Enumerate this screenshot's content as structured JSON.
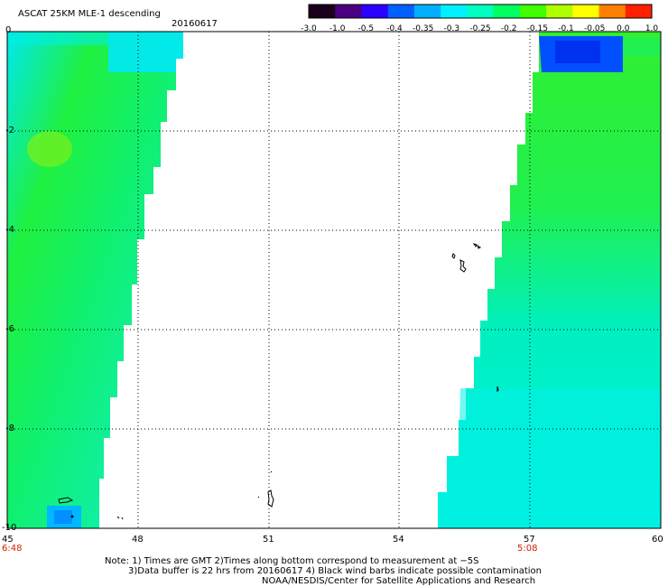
{
  "header": {
    "title": "ASCAT 25KM MLE-1 descending",
    "date": "20160617"
  },
  "colorbar": {
    "labels": [
      "-3.0",
      "-1.0",
      "-0.5",
      "-0.4",
      "-0.35",
      "-0.3",
      "-0.25",
      "-0.2",
      "-0.15",
      "-0.1",
      "-0.05",
      "0.0",
      "1.0"
    ],
    "colors": [
      "#1a001a",
      "#4a0080",
      "#2a00ff",
      "#0060ff",
      "#00b0ff",
      "#00f0ff",
      "#00ffc0",
      "#00ff60",
      "#40ff00",
      "#b0ff00",
      "#ffff00",
      "#ff8000",
      "#ff2000"
    ]
  },
  "axes": {
    "y_labels": [
      "0",
      "-2",
      "-4",
      "-6",
      "-8",
      "-10"
    ],
    "x_labels": [
      "45",
      "48",
      "51",
      "54",
      "57",
      "60"
    ],
    "time_left": "6:48",
    "time_right": "5:08"
  },
  "map_data": {
    "lon_range": [
      45,
      60
    ],
    "lat_range": [
      -10,
      0
    ]
  },
  "notes": {
    "line1": "Note: 1) Times are GMT 2)Times along bottom correspond to measurement at −5S",
    "line2": "3)Data buffer is 22 hrs from 20160617 4) Black wind barbs indicate possible contamination",
    "line3": "NOAA/NESDIS/Center for Satellite Applications and Research"
  }
}
